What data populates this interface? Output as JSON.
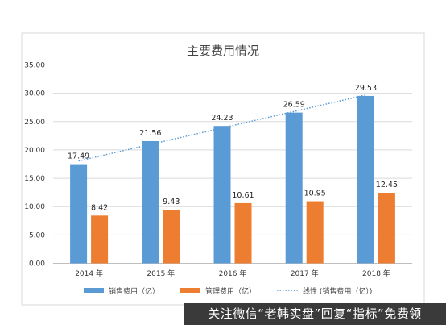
{
  "chart_data": {
    "type": "bar",
    "title": "主要费用情况",
    "categories": [
      "2014 年",
      "2015 年",
      "2016 年",
      "2017 年",
      "2018 年"
    ],
    "series": [
      {
        "name": "销售费用（亿）",
        "values": [
          17.49,
          21.56,
          24.23,
          26.59,
          29.53
        ],
        "color": "#5b9bd5"
      },
      {
        "name": "管理费用（亿）",
        "values": [
          8.42,
          9.43,
          10.61,
          10.95,
          12.45
        ],
        "color": "#ed7d31"
      }
    ],
    "trendline": {
      "name": "线性 (销售费用（亿）)",
      "series": "销售费用（亿）",
      "style": "dotted",
      "color": "#5b9bd5"
    },
    "yticks": [
      "0.00",
      "5.00",
      "10.00",
      "15.00",
      "20.00",
      "25.00",
      "30.00",
      "35.00"
    ],
    "ylim": [
      0,
      35
    ],
    "grid": true,
    "legend": "bottom"
  },
  "watermark": "关注微信“老韩实盘”回复“指标”免费领"
}
